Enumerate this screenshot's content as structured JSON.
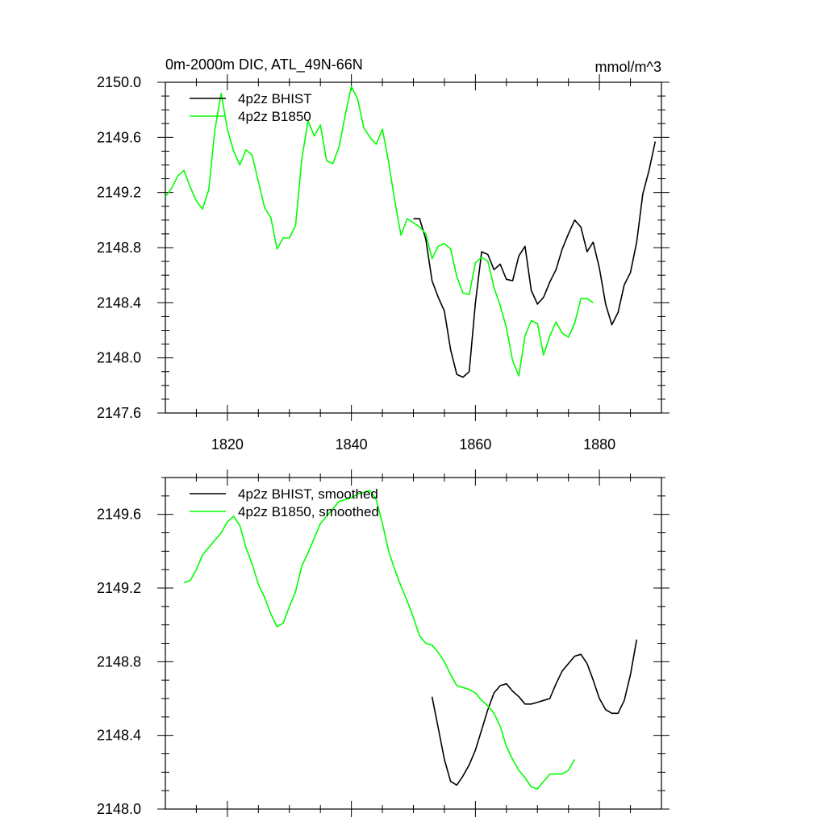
{
  "chart_data": [
    {
      "type": "line",
      "title": "0m-2000m DIC, ATL_49N-66N",
      "units": "mmol/m^3",
      "xlabel": "",
      "ylabel": "",
      "xlim": [
        1810,
        1890
      ],
      "ylim": [
        2147.6,
        2150.0
      ],
      "x_ticks": [
        1820,
        1840,
        1860,
        1880
      ],
      "x_tick_labels": [
        "1820",
        "1840",
        "1860",
        "1880"
      ],
      "y_ticks": [
        2147.6,
        2148.0,
        2148.4,
        2148.8,
        2149.2,
        2149.6,
        2150.0
      ],
      "y_tick_labels": [
        "2147.6",
        "2148.0",
        "2148.4",
        "2148.8",
        "2149.2",
        "2149.6",
        "2150.0"
      ],
      "legend_position": "top-left",
      "series": [
        {
          "name": "4p2z BHIST",
          "color": "#000000",
          "x": [
            1850,
            1851,
            1852,
            1853,
            1854,
            1855,
            1856,
            1857,
            1858,
            1859,
            1860,
            1861,
            1862,
            1863,
            1864,
            1865,
            1866,
            1867,
            1868,
            1869,
            1870,
            1871,
            1872,
            1873,
            1874,
            1875,
            1876,
            1877,
            1878,
            1879,
            1880,
            1881,
            1882,
            1883,
            1884,
            1885,
            1886,
            1887,
            1888,
            1889
          ],
          "values": [
            2149.01,
            2149.01,
            2148.86,
            2148.56,
            2148.44,
            2148.34,
            2148.06,
            2147.88,
            2147.86,
            2147.9,
            2148.4,
            2148.77,
            2148.75,
            2148.64,
            2148.68,
            2148.57,
            2148.56,
            2148.74,
            2148.81,
            2148.49,
            2148.39,
            2148.44,
            2148.55,
            2148.64,
            2148.79,
            2148.9,
            2149.0,
            2148.95,
            2148.77,
            2148.84,
            2148.65,
            2148.39,
            2148.24,
            2148.33,
            2148.53,
            2148.62,
            2148.84,
            2149.19,
            2149.36,
            2149.57
          ]
        },
        {
          "name": "4p2z B1850",
          "color": "#00ff00",
          "x": [
            1810,
            1811,
            1812,
            1813,
            1814,
            1815,
            1816,
            1817,
            1818,
            1819,
            1820,
            1821,
            1822,
            1823,
            1824,
            1825,
            1826,
            1827,
            1828,
            1829,
            1830,
            1831,
            1832,
            1833,
            1834,
            1835,
            1836,
            1837,
            1838,
            1839,
            1840,
            1841,
            1842,
            1843,
            1844,
            1845,
            1846,
            1847,
            1848,
            1849,
            1850,
            1851,
            1852,
            1853,
            1854,
            1855,
            1856,
            1857,
            1858,
            1859,
            1860,
            1861,
            1862,
            1863,
            1864,
            1865,
            1866,
            1867,
            1868,
            1869,
            1870,
            1871,
            1872,
            1873,
            1874,
            1875,
            1876,
            1877,
            1878,
            1879
          ],
          "values": [
            2149.17,
            2149.23,
            2149.32,
            2149.36,
            2149.24,
            2149.14,
            2149.08,
            2149.22,
            2149.66,
            2149.92,
            2149.66,
            2149.5,
            2149.4,
            2149.51,
            2149.47,
            2149.28,
            2149.09,
            2149.02,
            2148.79,
            2148.87,
            2148.87,
            2148.96,
            2149.44,
            2149.72,
            2149.61,
            2149.69,
            2149.43,
            2149.41,
            2149.53,
            2149.76,
            2149.97,
            2149.88,
            2149.67,
            2149.6,
            2149.55,
            2149.66,
            2149.42,
            2149.14,
            2148.89,
            2149.01,
            2148.98,
            2148.95,
            2148.9,
            2148.72,
            2148.81,
            2148.83,
            2148.79,
            2148.59,
            2148.47,
            2148.46,
            2148.69,
            2148.73,
            2148.7,
            2148.51,
            2148.38,
            2148.22,
            2147.98,
            2147.87,
            2148.16,
            2148.27,
            2148.25,
            2148.02,
            2148.16,
            2148.26,
            2148.18,
            2148.15,
            2148.25,
            2148.43,
            2148.43,
            2148.4
          ]
        }
      ]
    },
    {
      "type": "line",
      "title": "",
      "xlabel": "",
      "ylabel": "",
      "xlim": [
        1810,
        1890
      ],
      "ylim": [
        2148.0,
        2149.8
      ],
      "x_ticks": [
        1820,
        1840,
        1860,
        1880
      ],
      "y_ticks": [
        2148.0,
        2148.4,
        2148.8,
        2149.2,
        2149.6
      ],
      "y_tick_labels": [
        "2148.0",
        "2148.4",
        "2148.8",
        "2149.2",
        "2149.6"
      ],
      "legend_position": "top-left",
      "series": [
        {
          "name": "4p2z BHIST, smoothed",
          "color": "#000000",
          "x": [
            1853,
            1854,
            1855,
            1856,
            1857,
            1858,
            1859,
            1860,
            1861,
            1862,
            1863,
            1864,
            1865,
            1866,
            1867,
            1868,
            1869,
            1870,
            1871,
            1872,
            1873,
            1874,
            1875,
            1876,
            1877,
            1878,
            1879,
            1880,
            1881,
            1882,
            1883,
            1884,
            1885,
            1886
          ],
          "values": [
            2148.61,
            2148.44,
            2148.27,
            2148.15,
            2148.13,
            2148.18,
            2148.24,
            2148.32,
            2148.43,
            2148.54,
            2148.63,
            2148.67,
            2148.68,
            2148.64,
            2148.61,
            2148.57,
            2148.57,
            2148.58,
            2148.59,
            2148.6,
            2148.68,
            2148.75,
            2148.79,
            2148.83,
            2148.84,
            2148.79,
            2148.7,
            2148.6,
            2148.54,
            2148.52,
            2148.52,
            2148.59,
            2148.73,
            2148.92
          ]
        },
        {
          "name": "4p2z B1850, smoothed",
          "color": "#00ff00",
          "x": [
            1813,
            1814,
            1815,
            1816,
            1817,
            1818,
            1819,
            1820,
            1821,
            1822,
            1823,
            1824,
            1825,
            1826,
            1827,
            1828,
            1829,
            1830,
            1831,
            1832,
            1833,
            1834,
            1835,
            1836,
            1837,
            1838,
            1839,
            1840,
            1841,
            1842,
            1843,
            1844,
            1845,
            1846,
            1847,
            1848,
            1849,
            1850,
            1851,
            1852,
            1853,
            1854,
            1855,
            1856,
            1857,
            1858,
            1859,
            1860,
            1861,
            1862,
            1863,
            1864,
            1865,
            1866,
            1867,
            1868,
            1869,
            1870,
            1871,
            1872,
            1873,
            1874,
            1875,
            1876
          ],
          "values": [
            2149.23,
            2149.24,
            2149.3,
            2149.38,
            2149.42,
            2149.46,
            2149.5,
            2149.56,
            2149.59,
            2149.54,
            2149.42,
            2149.33,
            2149.22,
            2149.15,
            2149.06,
            2148.99,
            2149.01,
            2149.1,
            2149.18,
            2149.32,
            2149.39,
            2149.47,
            2149.55,
            2149.59,
            2149.63,
            2149.67,
            2149.68,
            2149.69,
            2149.71,
            2149.72,
            2149.73,
            2149.68,
            2149.55,
            2149.4,
            2149.3,
            2149.21,
            2149.13,
            2149.04,
            2148.94,
            2148.9,
            2148.89,
            2148.85,
            2148.8,
            2148.73,
            2148.67,
            2148.66,
            2148.65,
            2148.63,
            2148.59,
            2148.56,
            2148.52,
            2148.45,
            2148.34,
            2148.27,
            2148.21,
            2148.17,
            2148.12,
            2148.11,
            2148.15,
            2148.19,
            2148.19,
            2148.19,
            2148.21,
            2148.27
          ]
        }
      ]
    }
  ]
}
